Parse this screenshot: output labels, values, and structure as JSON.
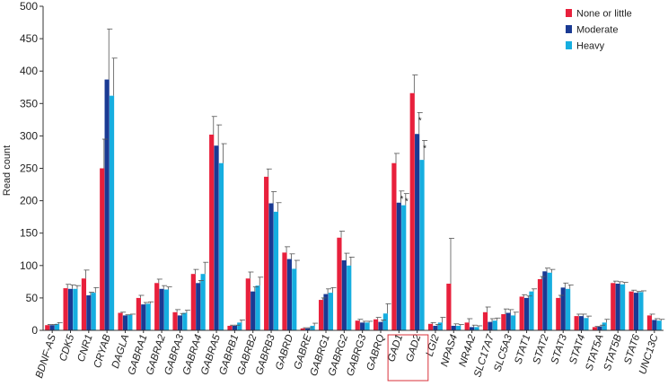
{
  "chart_data": {
    "type": "bar",
    "ylabel": "Read count",
    "ylim": [
      0,
      500
    ],
    "yticks": [
      0,
      50,
      100,
      150,
      200,
      250,
      300,
      350,
      400,
      450,
      500
    ],
    "legend_position": "top-right",
    "grid": false,
    "categories": [
      "BDNF-AS",
      "CDK5",
      "CNR1",
      "CRYAB",
      "DAGLA",
      "GABRA1",
      "GABRA2",
      "GABRA3",
      "GABRA4",
      "GABRA5",
      "GABRB1",
      "GABRB2",
      "GABRB3",
      "GABRD",
      "GABRE",
      "GABRG1",
      "GABRG2",
      "GABRG3",
      "GABRQ",
      "GAD1",
      "GAD2",
      "LGI2",
      "NPAS4",
      "NR4A2",
      "SLC17A7",
      "SLC5A3",
      "STAT1",
      "STAT2",
      "STAT3",
      "STAT4",
      "STAT5A",
      "STAT5B",
      "STAT6",
      "UNC13C"
    ],
    "highlighted_categories": [
      "GAD1",
      "GAD2"
    ],
    "series": [
      {
        "name": "None or little",
        "color": "#e8203c",
        "values": [
          8,
          65,
          80,
          250,
          27,
          50,
          73,
          28,
          87,
          302,
          7,
          80,
          237,
          120,
          3,
          47,
          143,
          15,
          17,
          258,
          366,
          10,
          72,
          12,
          28,
          25,
          52,
          79,
          50,
          22,
          5,
          73,
          60,
          23
        ],
        "errors": [
          1,
          6,
          13,
          45,
          1,
          4,
          6,
          4,
          7,
          28,
          1,
          10,
          12,
          9,
          1,
          3,
          10,
          2,
          3,
          15,
          28,
          2,
          70,
          6,
          8,
          8,
          3,
          4,
          4,
          3,
          1,
          3,
          2,
          2
        ]
      },
      {
        "name": "Moderate",
        "color": "#1a3a93",
        "values": [
          8,
          64,
          54,
          387,
          23,
          40,
          64,
          23,
          73,
          285,
          7,
          60,
          196,
          110,
          3,
          56,
          108,
          12,
          13,
          197,
          303,
          7,
          7,
          5,
          13,
          27,
          50,
          91,
          66,
          22,
          6,
          72,
          58,
          16
        ],
        "errors": [
          1,
          6,
          5,
          78,
          1,
          3,
          5,
          3,
          4,
          32,
          1,
          7,
          18,
          8,
          1,
          8,
          11,
          2,
          3,
          18,
          33,
          2,
          3,
          3,
          5,
          5,
          3,
          5,
          7,
          3,
          2,
          3,
          2,
          2
        ],
        "significant": [
          false,
          false,
          false,
          false,
          false,
          false,
          false,
          false,
          false,
          false,
          false,
          false,
          false,
          false,
          false,
          false,
          false,
          false,
          false,
          true,
          true,
          false,
          false,
          false,
          false,
          false,
          false,
          false,
          false,
          false,
          false,
          false,
          false,
          false
        ]
      },
      {
        "name": "Heavy",
        "color": "#16aee0",
        "values": [
          10,
          64,
          58,
          362,
          24,
          41,
          63,
          27,
          87,
          258,
          12,
          69,
          183,
          95,
          7,
          58,
          100,
          12,
          26,
          193,
          263,
          12,
          7,
          5,
          15,
          23,
          60,
          89,
          64,
          19,
          12,
          71,
          59,
          15
        ],
        "errors": [
          2,
          5,
          8,
          58,
          1,
          3,
          4,
          4,
          18,
          30,
          4,
          13,
          14,
          13,
          4,
          8,
          13,
          2,
          15,
          18,
          30,
          8,
          2,
          2,
          4,
          5,
          4,
          5,
          6,
          3,
          5,
          3,
          2,
          2
        ],
        "significant": [
          false,
          false,
          false,
          false,
          false,
          false,
          false,
          false,
          false,
          false,
          false,
          false,
          false,
          false,
          false,
          false,
          false,
          false,
          false,
          true,
          true,
          false,
          false,
          false,
          false,
          false,
          false,
          false,
          false,
          false,
          false,
          false,
          false,
          false
        ]
      }
    ],
    "significance_marker": "*"
  }
}
